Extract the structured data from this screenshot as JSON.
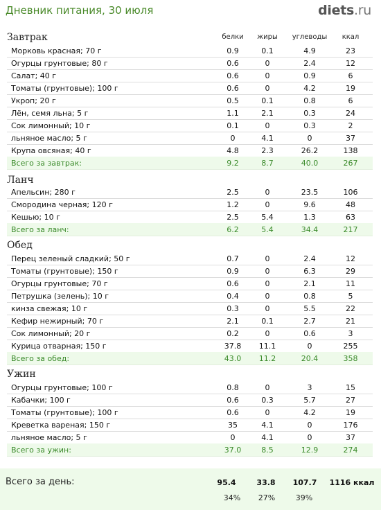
{
  "header": {
    "title": "Дневник питания, 30 июля",
    "logo_main": "diets",
    "logo_tld": ".ru"
  },
  "columns": {
    "protein": "белки",
    "fat": "жиры",
    "carbs": "углеводы",
    "kcal": "ккал"
  },
  "sections": {
    "breakfast": {
      "title": "Завтрак",
      "items": [
        {
          "name": "Морковь красная; 70 г",
          "protein": "0.9",
          "fat": "0.1",
          "carbs": "4.9",
          "kcal": "23"
        },
        {
          "name": "Огурцы грунтовые; 80 г",
          "protein": "0.6",
          "fat": "0",
          "carbs": "2.4",
          "kcal": "12"
        },
        {
          "name": "Салат; 40 г",
          "protein": "0.6",
          "fat": "0",
          "carbs": "0.9",
          "kcal": "6"
        },
        {
          "name": "Томаты (грунтовые); 100 г",
          "protein": "0.6",
          "fat": "0",
          "carbs": "4.2",
          "kcal": "19"
        },
        {
          "name": "Укроп; 20 г",
          "protein": "0.5",
          "fat": "0.1",
          "carbs": "0.8",
          "kcal": "6"
        },
        {
          "name": "Лён, семя льна; 5 г",
          "protein": "1.1",
          "fat": "2.1",
          "carbs": "0.3",
          "kcal": "24"
        },
        {
          "name": "Сок лимонный; 10 г",
          "protein": "0.1",
          "fat": "0",
          "carbs": "0.3",
          "kcal": "2"
        },
        {
          "name": "льняное масло; 5 г",
          "protein": "0",
          "fat": "4.1",
          "carbs": "0",
          "kcal": "37"
        },
        {
          "name": "Крупа овсяная; 40 г",
          "protein": "4.8",
          "fat": "2.3",
          "carbs": "26.2",
          "kcal": "138"
        }
      ],
      "total": {
        "name": "Всего за завтрак:",
        "protein": "9.2",
        "fat": "8.7",
        "carbs": "40.0",
        "kcal": "267"
      }
    },
    "lunch": {
      "title": "Ланч",
      "items": [
        {
          "name": "Апельсин; 280 г",
          "protein": "2.5",
          "fat": "0",
          "carbs": "23.5",
          "kcal": "106"
        },
        {
          "name": "Смородина черная; 120 г",
          "protein": "1.2",
          "fat": "0",
          "carbs": "9.6",
          "kcal": "48"
        },
        {
          "name": "Кешью; 10 г",
          "protein": "2.5",
          "fat": "5.4",
          "carbs": "1.3",
          "kcal": "63"
        }
      ],
      "total": {
        "name": "Всего за ланч:",
        "protein": "6.2",
        "fat": "5.4",
        "carbs": "34.4",
        "kcal": "217"
      }
    },
    "dinner": {
      "title": "Обед",
      "items": [
        {
          "name": "Перец зеленый сладкий; 50 г",
          "protein": "0.7",
          "fat": "0",
          "carbs": "2.4",
          "kcal": "12"
        },
        {
          "name": "Томаты (грунтовые); 150 г",
          "protein": "0.9",
          "fat": "0",
          "carbs": "6.3",
          "kcal": "29"
        },
        {
          "name": "Огурцы грунтовые; 70 г",
          "protein": "0.6",
          "fat": "0",
          "carbs": "2.1",
          "kcal": "11"
        },
        {
          "name": "Петрушка (зелень); 10 г",
          "protein": "0.4",
          "fat": "0",
          "carbs": "0.8",
          "kcal": "5"
        },
        {
          "name": "кинза свежая; 10 г",
          "protein": "0.3",
          "fat": "0",
          "carbs": "5.5",
          "kcal": "22"
        },
        {
          "name": "Кефир нежирный; 70 г",
          "protein": "2.1",
          "fat": "0.1",
          "carbs": "2.7",
          "kcal": "21"
        },
        {
          "name": "Сок лимонный; 20 г",
          "protein": "0.2",
          "fat": "0",
          "carbs": "0.6",
          "kcal": "3"
        },
        {
          "name": "Курица отварная; 150 г",
          "protein": "37.8",
          "fat": "11.1",
          "carbs": "0",
          "kcal": "255"
        }
      ],
      "total": {
        "name": "Всего за обед:",
        "protein": "43.0",
        "fat": "11.2",
        "carbs": "20.4",
        "kcal": "358"
      }
    },
    "supper": {
      "title": "Ужин",
      "items": [
        {
          "name": "Огурцы грунтовые; 100 г",
          "protein": "0.8",
          "fat": "0",
          "carbs": "3",
          "kcal": "15"
        },
        {
          "name": "Кабачки; 100 г",
          "protein": "0.6",
          "fat": "0.3",
          "carbs": "5.7",
          "kcal": "27"
        },
        {
          "name": "Томаты (грунтовые); 100 г",
          "protein": "0.6",
          "fat": "0",
          "carbs": "4.2",
          "kcal": "19"
        },
        {
          "name": "Креветка вареная; 150 г",
          "protein": "35",
          "fat": "4.1",
          "carbs": "0",
          "kcal": "176"
        },
        {
          "name": "льняное масло; 5 г",
          "protein": "0",
          "fat": "4.1",
          "carbs": "0",
          "kcal": "37"
        }
      ],
      "total": {
        "name": "Всего за ужин:",
        "protein": "37.0",
        "fat": "8.5",
        "carbs": "12.9",
        "kcal": "274"
      }
    }
  },
  "day_total": {
    "label": "Всего за день:",
    "protein": "95.4",
    "fat": "33.8",
    "carbs": "107.7",
    "kcal": "1116 ккал",
    "protein_pct": "34%",
    "fat_pct": "27%",
    "carbs_pct": "39%"
  }
}
